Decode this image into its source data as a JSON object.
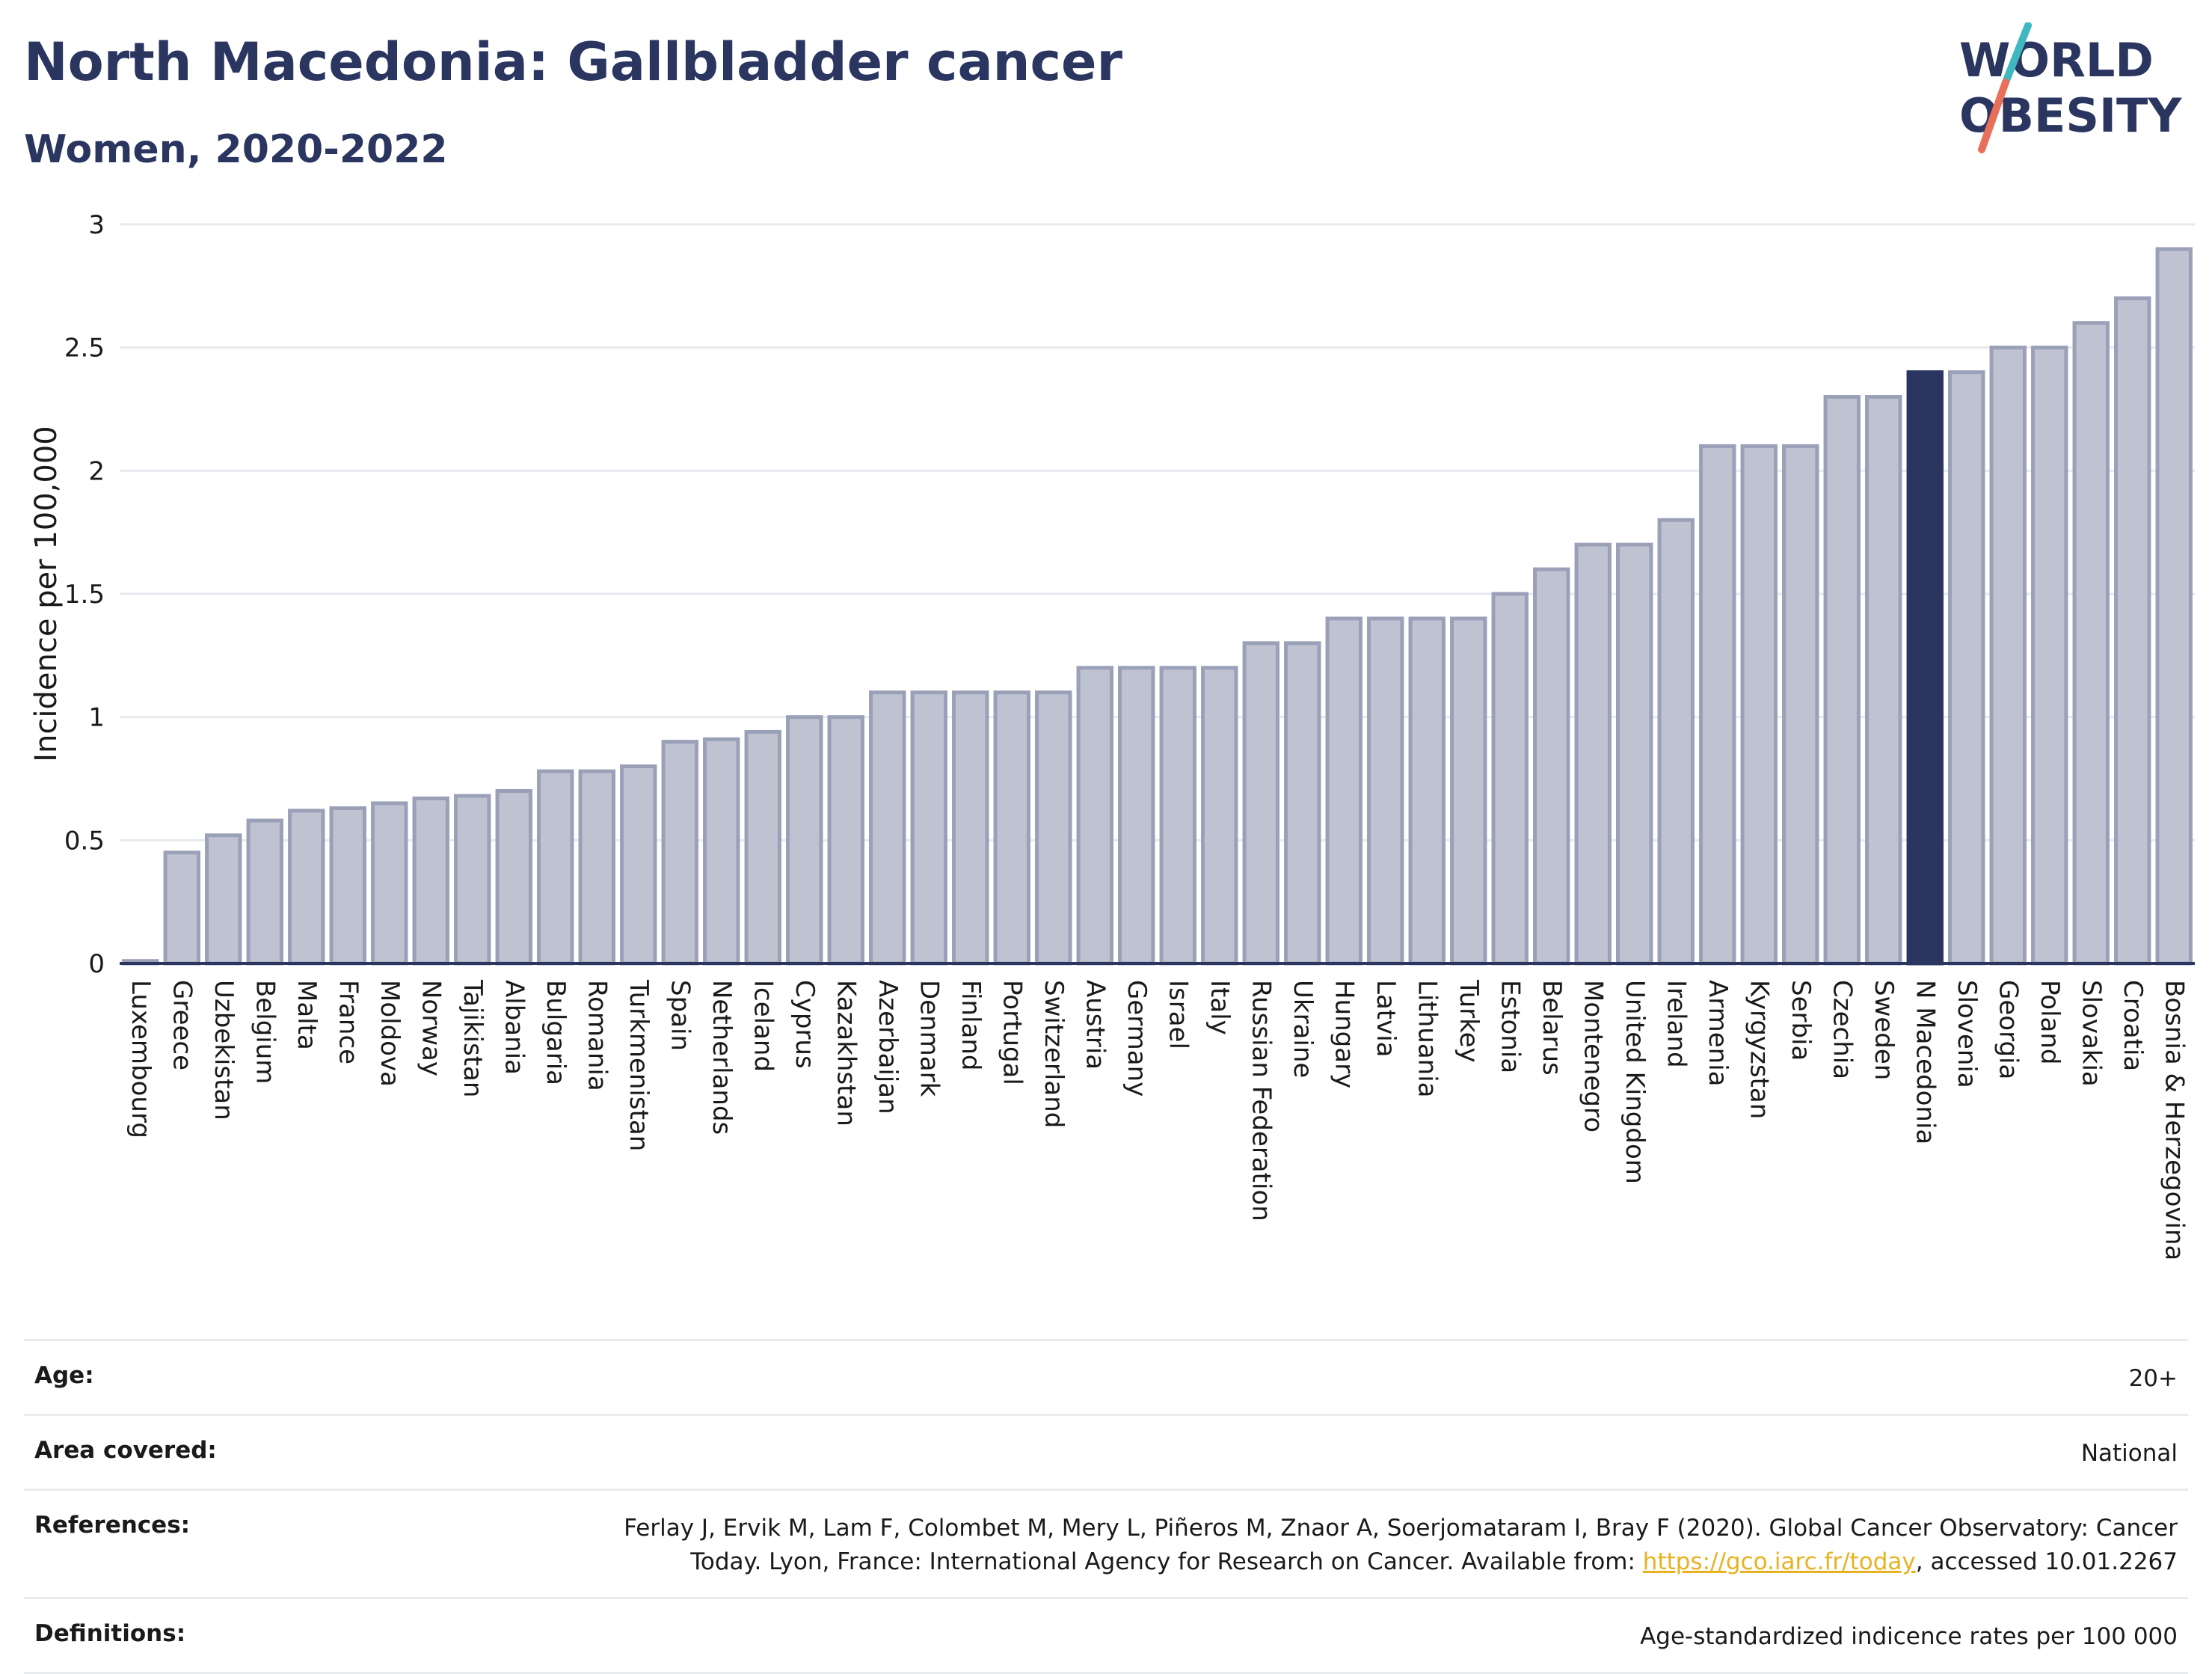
{
  "header": {
    "title": "North Macedonia: Gallbladder cancer",
    "subtitle": "Women, 2020-2022"
  },
  "logo": {
    "line1": "WORLD",
    "line2": "OBESITY",
    "accent_colors": [
      "#3fb8c0",
      "#e8705a"
    ]
  },
  "colors": {
    "bar": "#bfc3d1",
    "bar_border": "#9aa0b8",
    "highlight": "#2a3560",
    "grid": "#e6e9ee",
    "axis": "#2a3560"
  },
  "chart_data": {
    "type": "bar",
    "ylabel": "Incidence per 100,000",
    "ylim": [
      0,
      3
    ],
    "yticks": [
      0,
      0.5,
      1,
      1.5,
      2,
      2.5,
      3
    ],
    "grid": true,
    "highlight": "N Macedonia",
    "categories": [
      "Luxembourg",
      "Greece",
      "Uzbekistan",
      "Belgium",
      "Malta",
      "France",
      "Moldova",
      "Norway",
      "Tajikistan",
      "Albania",
      "Bulgaria",
      "Romania",
      "Turkmenistan",
      "Spain",
      "Netherlands",
      "Iceland",
      "Cyprus",
      "Kazakhstan",
      "Azerbaijan",
      "Denmark",
      "Finland",
      "Portugal",
      "Switzerland",
      "Austria",
      "Germany",
      "Israel",
      "Italy",
      "Russian Federation",
      "Ukraine",
      "Hungary",
      "Latvia",
      "Lithuania",
      "Turkey",
      "Estonia",
      "Belarus",
      "Montenegro",
      "United Kingdom",
      "Ireland",
      "Armenia",
      "Kyrgyzstan",
      "Serbia",
      "Czechia",
      "Sweden",
      "N Macedonia",
      "Slovenia",
      "Georgia",
      "Poland",
      "Slovakia",
      "Croatia",
      "Bosnia & Herzegovina"
    ],
    "values": [
      0.01,
      0.45,
      0.52,
      0.58,
      0.62,
      0.63,
      0.65,
      0.67,
      0.68,
      0.7,
      0.78,
      0.78,
      0.8,
      0.9,
      0.91,
      0.94,
      1.0,
      1.0,
      1.1,
      1.1,
      1.1,
      1.1,
      1.1,
      1.2,
      1.2,
      1.2,
      1.2,
      1.3,
      1.3,
      1.4,
      1.4,
      1.4,
      1.4,
      1.5,
      1.6,
      1.7,
      1.7,
      1.8,
      2.1,
      2.1,
      2.1,
      2.3,
      2.3,
      2.4,
      2.4,
      2.5,
      2.5,
      2.6,
      2.7,
      2.9
    ]
  },
  "info": {
    "age_label": "Age:",
    "age_value": "20+",
    "area_label": "Area covered:",
    "area_value": "National",
    "references_label": "References:",
    "references_text": "Ferlay J, Ervik M, Lam F, Colombet M, Mery L, Piñeros M, Znaor A, Soerjomataram I, Bray F (2020). Global Cancer Observatory: Cancer Today. Lyon, France: International Agency for Research on Cancer. Available from: ",
    "references_link": "https://gco.iarc.fr/today",
    "references_suffix": ", accessed 10.01.2267",
    "definitions_label": "Definitions:",
    "definitions_value": "Age-standardized indicence rates per 100 000"
  }
}
